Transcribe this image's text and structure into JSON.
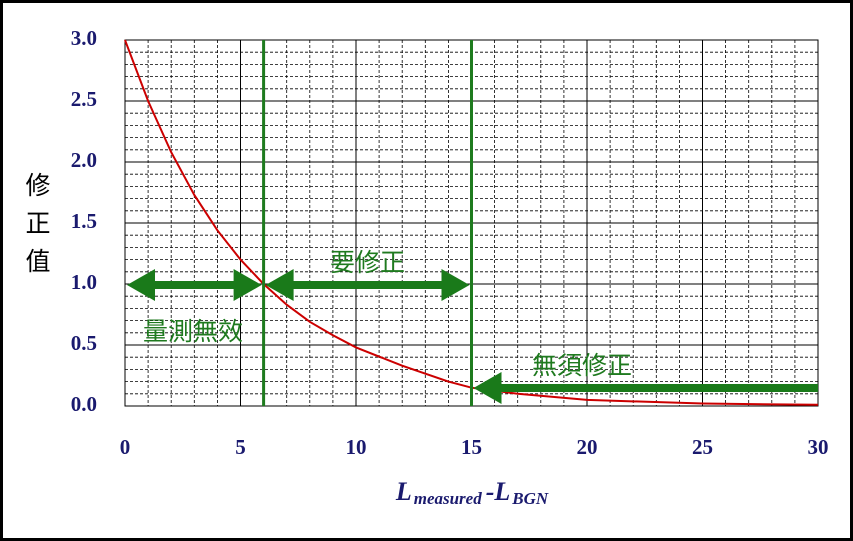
{
  "chart_data": {
    "type": "line",
    "y_label": [
      "修",
      "正",
      "值"
    ],
    "x_label": [
      "L",
      "measured",
      "-L",
      "BGN"
    ],
    "x": [
      0,
      1,
      2,
      3,
      4,
      5,
      6,
      7,
      8,
      9,
      10,
      12,
      14,
      15,
      17,
      20,
      25,
      30
    ],
    "values": [
      3.0,
      2.5,
      2.08,
      1.73,
      1.44,
      1.2,
      1.0,
      0.83,
      0.69,
      0.58,
      0.48,
      0.33,
      0.2,
      0.15,
      0.1,
      0.05,
      0.02,
      0.01
    ],
    "color": "#cc0000",
    "xlim": [
      0,
      30
    ],
    "xticks": [
      0,
      5,
      10,
      15,
      20,
      25,
      30
    ],
    "ylim": [
      0,
      3
    ],
    "yticks": [
      {
        "value": 0,
        "label": "0.0"
      },
      {
        "value": 0.5,
        "label": "0.5"
      },
      {
        "value": 1,
        "label": "1.0"
      },
      {
        "value": 1.5,
        "label": "1.5"
      },
      {
        "value": 2,
        "label": "2.0"
      },
      {
        "value": 2.5,
        "label": "2.5"
      },
      {
        "value": 3,
        "label": "3.0"
      }
    ],
    "grid": true,
    "vlines": [
      6,
      15
    ],
    "vline_color": "#1e7b1e",
    "annotations": [
      "要修正",
      "量測無效",
      "無須修正"
    ]
  }
}
